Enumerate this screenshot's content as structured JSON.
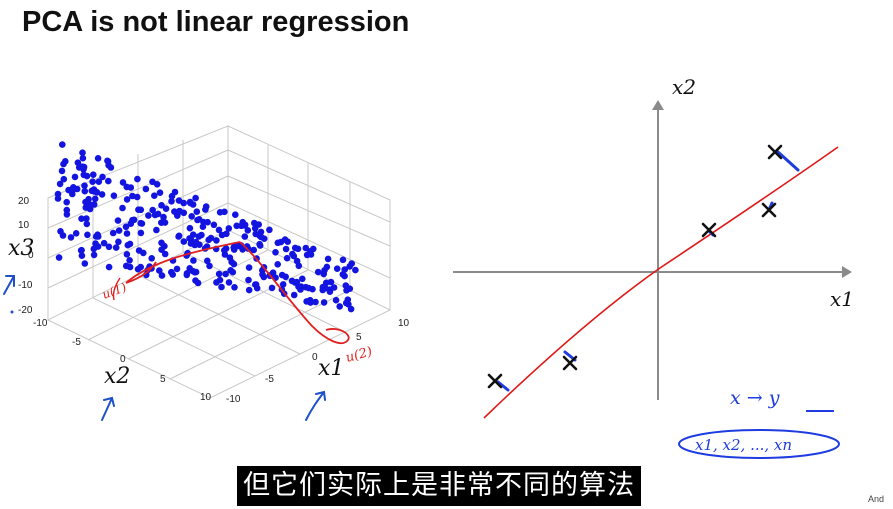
{
  "slide": {
    "title": "PCA is not linear regression",
    "subtitle": "但它们实际上是非常不同的算法",
    "credit": "And"
  },
  "plot3d": {
    "axis_labels": {
      "x1": "x1",
      "x2": "x2",
      "x3": "x3"
    },
    "z_ticks": [
      "20",
      "10",
      "0",
      "-10",
      "-20"
    ],
    "x2_ticks": [
      "-10",
      "-5",
      "0",
      "5",
      "10"
    ],
    "x1_ticks": [
      "-10",
      "-5",
      "0",
      "5",
      "10"
    ],
    "annotations": {
      "u1": "u(1)",
      "u2": "u(2)"
    },
    "colors": {
      "points": "#1414e0",
      "annotation": "#e02020",
      "arrows": "#1e50c8"
    }
  },
  "plot2d": {
    "axis_labels": {
      "x1": "x1",
      "x2": "x2"
    },
    "annotations": {
      "mapping": "x → y",
      "features": "x1, x2, ..., xn"
    },
    "colors": {
      "line": "#e01818",
      "marker": "#111111",
      "residual": "#1e3ce0",
      "ink": "#1e3ce0"
    }
  }
}
